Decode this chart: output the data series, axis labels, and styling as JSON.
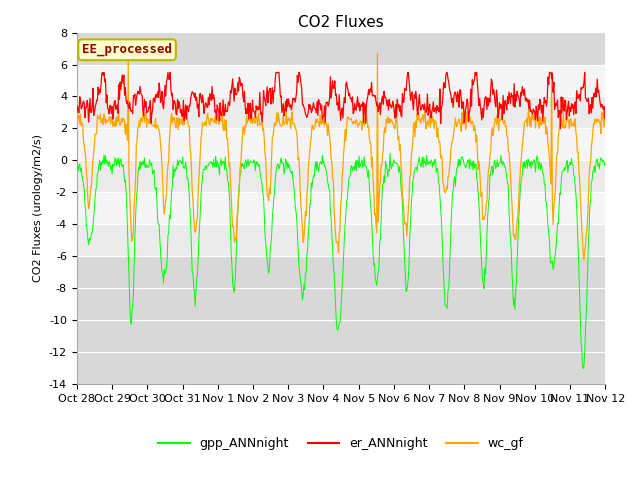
{
  "title": "CO2 Fluxes",
  "ylabel": "CO2 Fluxes (urology/m2/s)",
  "ylim": [
    -14,
    8
  ],
  "yticks": [
    -14,
    -12,
    -10,
    -8,
    -6,
    -4,
    -2,
    0,
    2,
    4,
    6,
    8
  ],
  "xtick_labels": [
    "Oct 28",
    "Oct 29",
    "Oct 30",
    "Oct 31",
    "Nov 1",
    "Nov 2",
    "Nov 3",
    "Nov 4",
    "Nov 5",
    "Nov 6",
    "Nov 7",
    "Nov 8",
    "Nov 9",
    "Nov 10",
    "Nov 11",
    "Nov 12"
  ],
  "legend_entries": [
    "gpp_ANNnight",
    "er_ANNnight",
    "wc_gf"
  ],
  "line_colors": [
    "#00ff00",
    "#ff0000",
    "#ffa500"
  ],
  "inset_label": "EE_processed",
  "title_fontsize": 11,
  "axis_fontsize": 8,
  "tick_fontsize": 8,
  "n_days": 15,
  "pts_per_day": 48
}
